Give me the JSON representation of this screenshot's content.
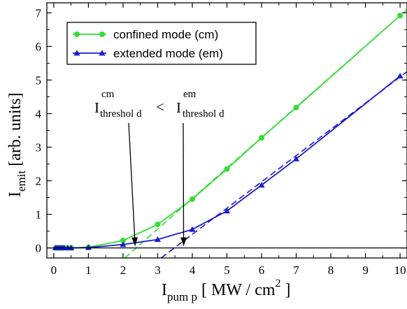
{
  "chart_data": {
    "type": "line",
    "xlim": [
      -0.2,
      10.2
    ],
    "ylim": [
      -0.3,
      7.3
    ],
    "x_ticks": [
      0,
      1,
      2,
      3,
      4,
      5,
      6,
      7,
      8,
      9,
      10
    ],
    "y_ticks": [
      0,
      1,
      2,
      3,
      4,
      5,
      6,
      7
    ],
    "xlabel": {
      "main": "I",
      "sub": "pum p",
      "rest": " [ MW / cm",
      "sup": "2",
      "end": " ]"
    },
    "ylabel": {
      "main": "I",
      "sub": "emit",
      "rest": "    [arb. units]"
    },
    "legend_position": "top-left",
    "series": [
      {
        "name": "confined mode (cm)",
        "color": "#33dd33",
        "marker": "circle",
        "x": [
          0.05,
          0.1,
          0.15,
          0.2,
          0.25,
          0.3,
          0.4,
          0.5,
          1,
          2,
          3,
          4,
          5,
          6,
          7,
          10
        ],
        "y": [
          0,
          0,
          0,
          0,
          0,
          0,
          0,
          0,
          0.02,
          0.22,
          0.7,
          1.45,
          2.35,
          3.28,
          4.18,
          6.92
        ]
      },
      {
        "name": "extended mode (em)",
        "color": "#1a1acc",
        "marker": "triangle",
        "x": [
          0.05,
          0.1,
          0.15,
          0.2,
          0.25,
          0.3,
          0.4,
          0.5,
          1,
          2,
          3,
          4,
          5,
          6,
          7,
          10
        ],
        "y": [
          0,
          0,
          0,
          0,
          0,
          0,
          0,
          0,
          0.01,
          0.1,
          0.25,
          0.55,
          1.1,
          1.87,
          2.65,
          5.12
        ]
      }
    ],
    "fit_lines": [
      {
        "series": "confined mode (cm)",
        "x": [
          2.05,
          10.2
        ],
        "y": [
          -0.3,
          7.1
        ]
      },
      {
        "series": "extended mode (em)",
        "x": [
          3.1,
          10.2
        ],
        "y": [
          -0.3,
          5.25
        ]
      }
    ],
    "annotation": {
      "left": {
        "main": "I",
        "sup": "cm",
        "sub": "threshol d"
      },
      "operator": "<",
      "right": {
        "main": "I",
        "sup": "em",
        "sub": "threshol d"
      },
      "arrow_targets": [
        {
          "series": "confined mode (cm)",
          "x": 2.35,
          "y": 0
        },
        {
          "series": "extended mode (em)",
          "x": 3.75,
          "y": 0
        }
      ]
    }
  }
}
